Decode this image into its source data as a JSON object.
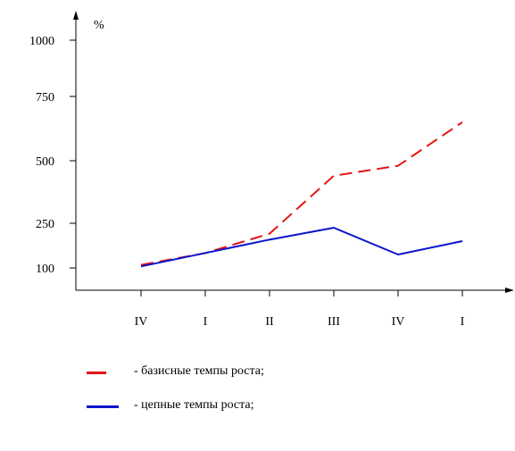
{
  "chart_data": {
    "type": "line",
    "title": "",
    "xlabel": "",
    "ylabel": "%",
    "categories": [
      "IV",
      "I",
      "II",
      "III",
      "IV",
      "I"
    ],
    "y_ticks": [
      "100",
      "250",
      "500",
      "750",
      "1000"
    ],
    "ylim": [
      50,
      1000
    ],
    "grid": false,
    "legend_position": "bottom-left",
    "series": [
      {
        "name": "- базисные темпы роста;",
        "style": "dashed",
        "color": "#e41414",
        "values": [
          110,
          150,
          215,
          440,
          480,
          650
        ]
      },
      {
        "name": "- цепные темпы роста;",
        "style": "solid",
        "color": "#0a14cc",
        "values": [
          105,
          150,
          195,
          235,
          145,
          190
        ]
      }
    ]
  }
}
